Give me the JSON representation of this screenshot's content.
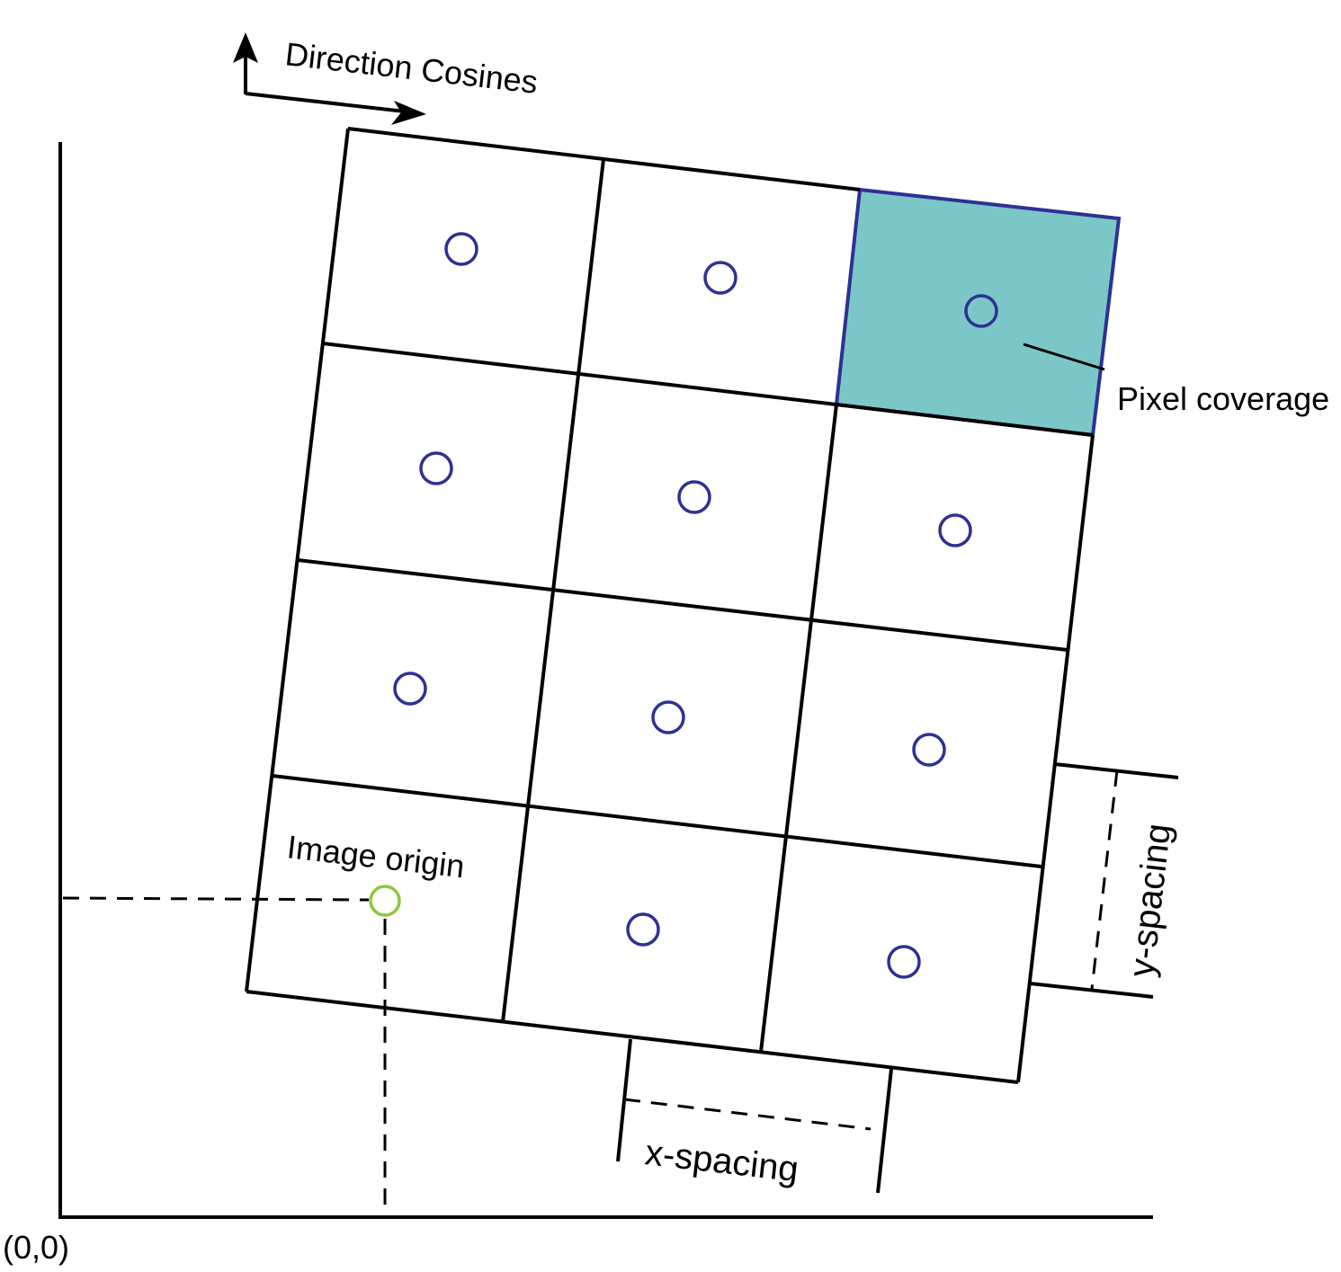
{
  "labels": {
    "direction_cosines": "Direction Cosines",
    "pixel_coverage": "Pixel coverage",
    "image_origin": "Image origin",
    "x_spacing": "x-spacing",
    "y_spacing": "y-spacing",
    "world_origin": "(0,0)"
  },
  "grid": {
    "columns": 3,
    "rows": 4,
    "highlighted_cell": {
      "row": 0,
      "col": 2
    }
  },
  "colors": {
    "pixel_center": "#2e3192",
    "image_origin_marker": "#8dc63f",
    "coverage_fill": "#7bc7c8",
    "coverage_border": "#2e3192",
    "line": "#000000"
  }
}
